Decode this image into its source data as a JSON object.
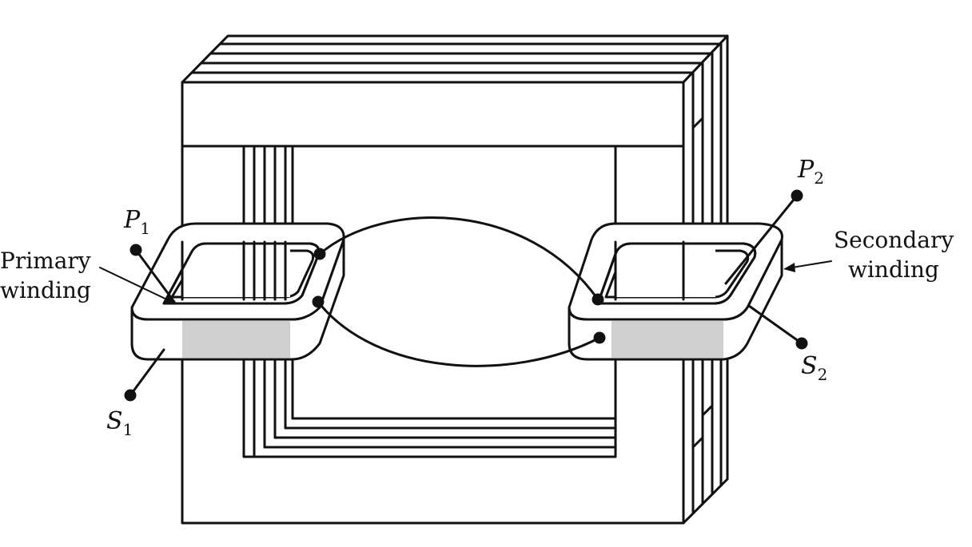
{
  "labels": {
    "primary_line1": "Primary",
    "primary_line2": "winding",
    "secondary_line1": "Secondary",
    "secondary_line2": "winding",
    "p1": {
      "letter": "P",
      "sub": "1"
    },
    "p2": {
      "letter": "P",
      "sub": "2"
    },
    "s1": {
      "letter": "S",
      "sub": "1"
    },
    "s2": {
      "letter": "S",
      "sub": "2"
    }
  },
  "colors": {
    "line": "#111111",
    "background": "#ffffff",
    "coil_shade": "#cfcfcf"
  }
}
